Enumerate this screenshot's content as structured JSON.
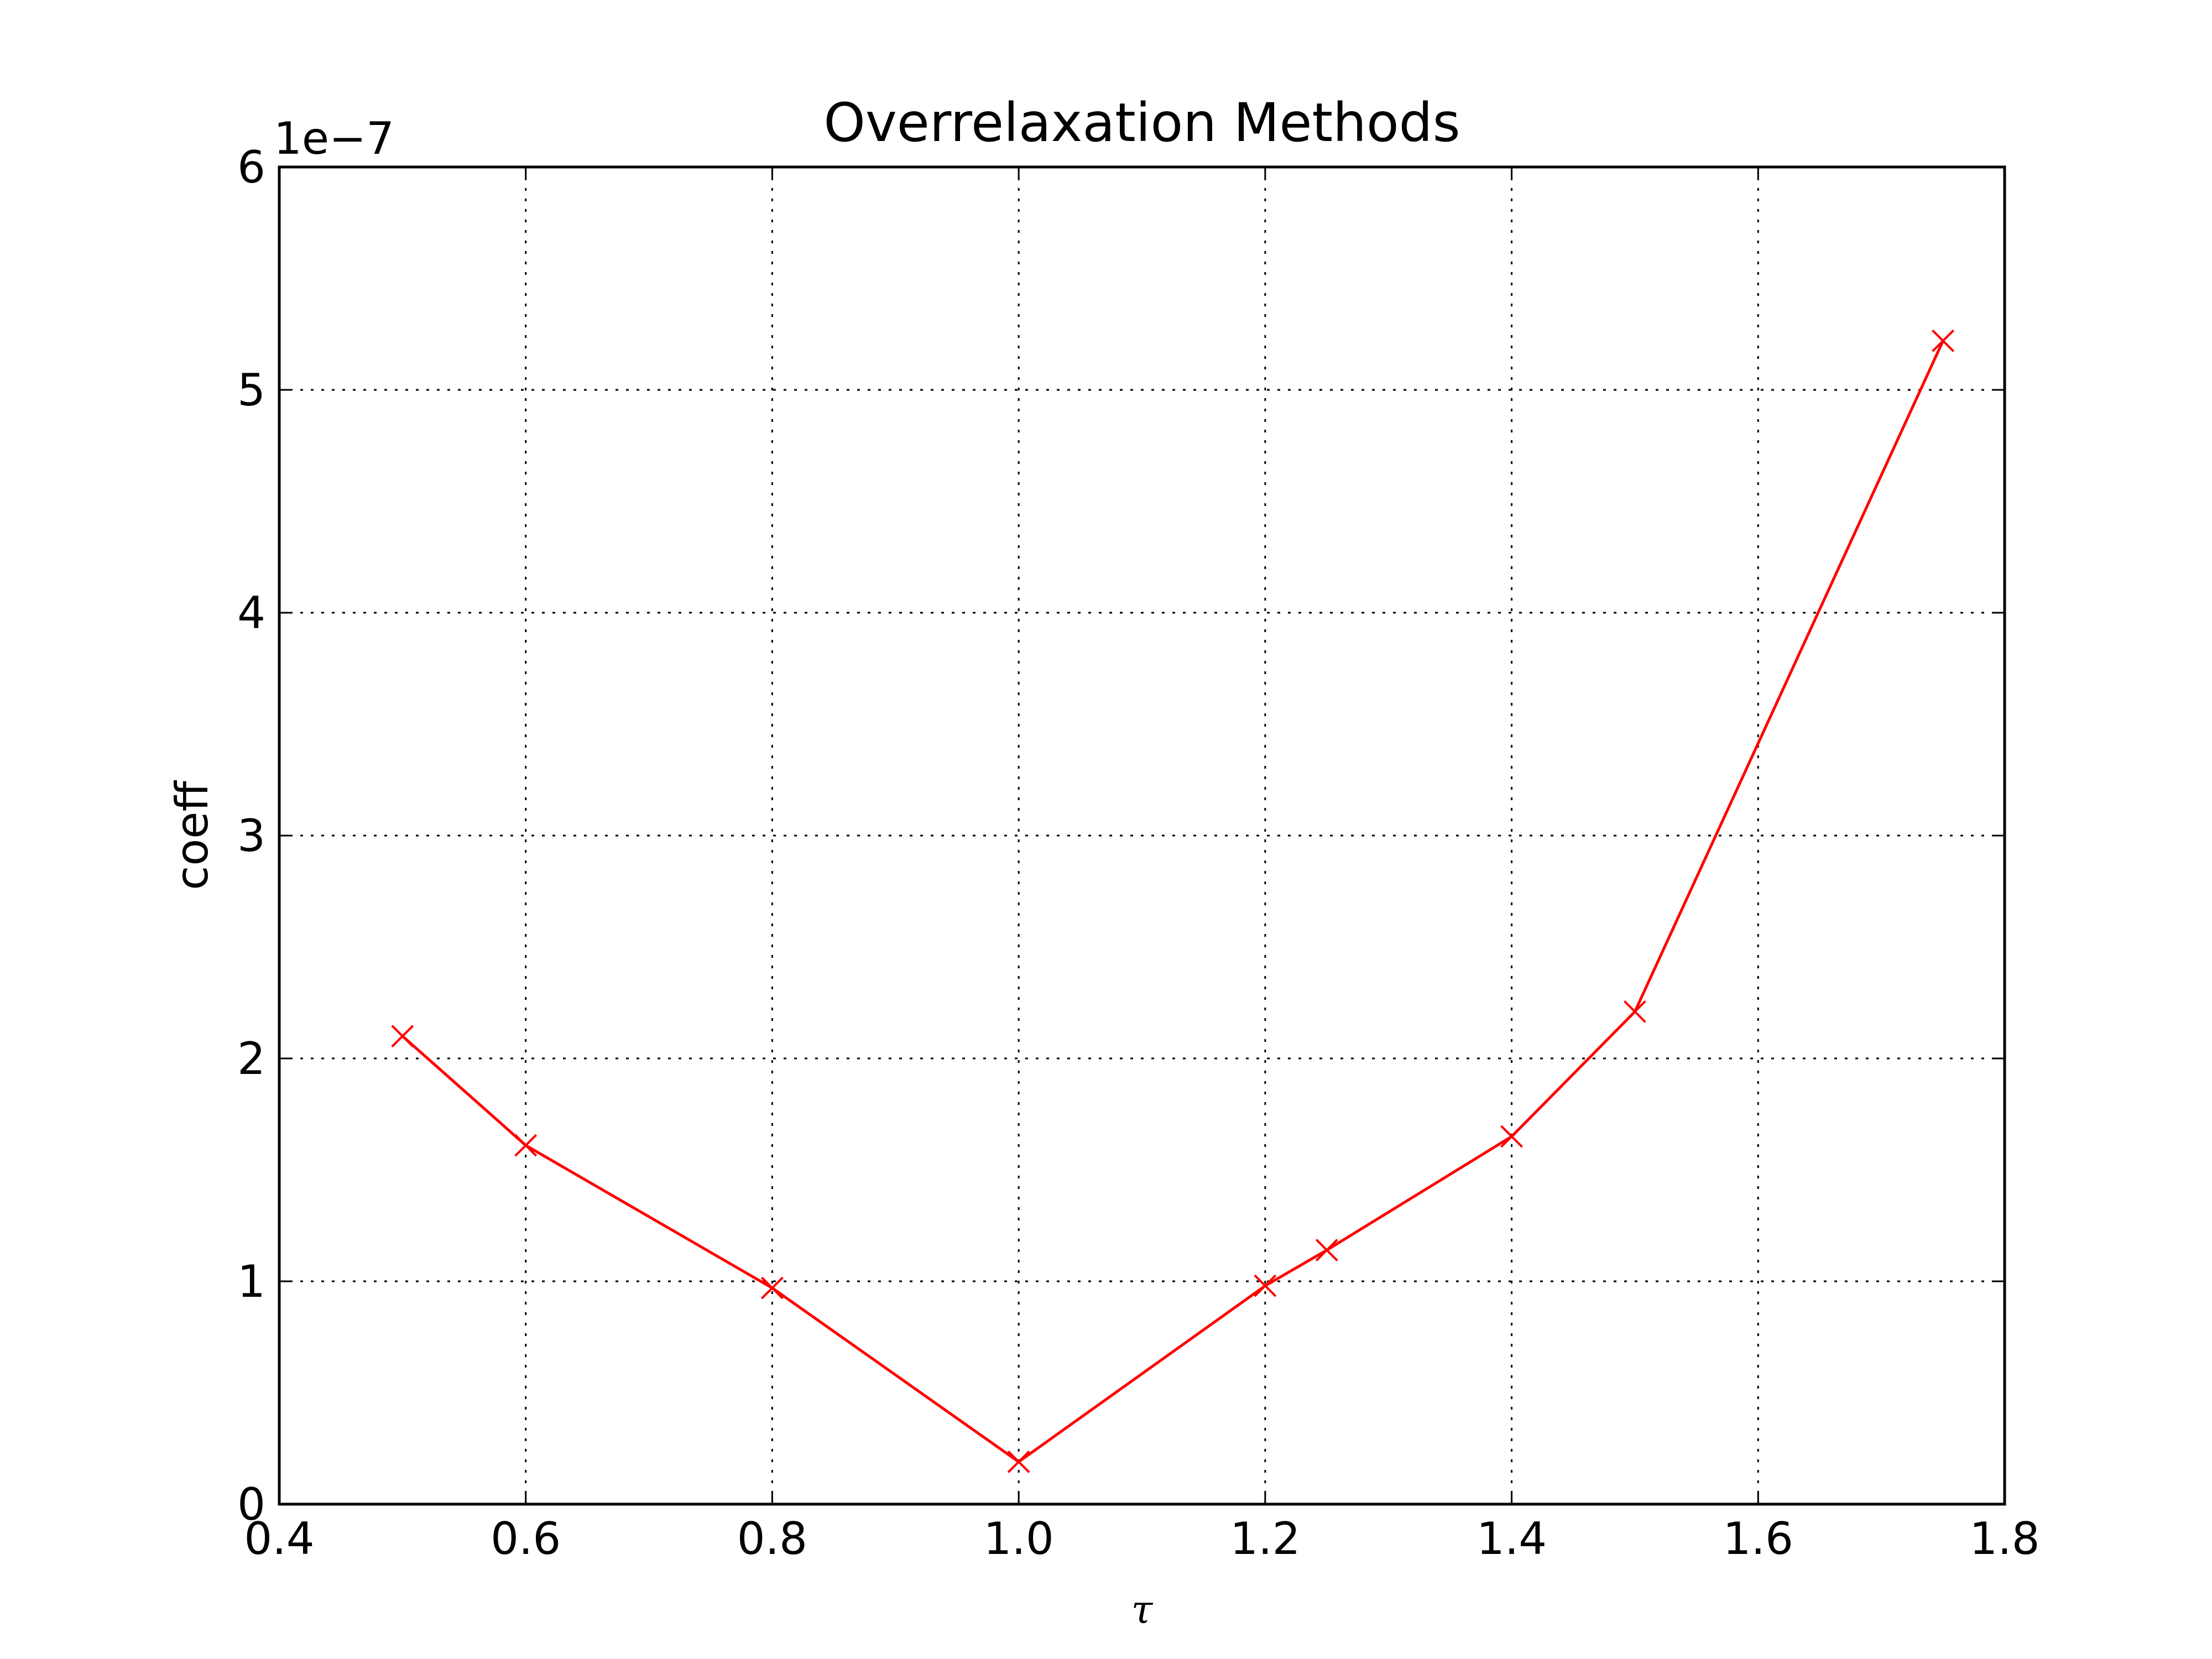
{
  "chart_data": {
    "type": "line",
    "title": "Overrelaxation Methods",
    "xlabel": "τ",
    "ylabel": "coeff",
    "offset_label": "1e−7",
    "xlim": [
      0.4,
      1.8
    ],
    "ylim": [
      0,
      6
    ],
    "x_ticks": [
      "0.4",
      "0.6",
      "0.8",
      "1.0",
      "1.2",
      "1.4",
      "1.6",
      "1.8"
    ],
    "y_ticks": [
      "0",
      "1",
      "2",
      "3",
      "4",
      "5",
      "6"
    ],
    "grid": true,
    "series": [
      {
        "color": "#ff0000",
        "marker": "x",
        "x": [
          0.5,
          0.6,
          0.8,
          1.0,
          1.2,
          1.25,
          1.4,
          1.5,
          1.75
        ],
        "y": [
          2.1,
          1.61,
          0.97,
          0.19,
          0.98,
          1.14,
          1.65,
          2.21,
          5.22
        ]
      }
    ]
  }
}
